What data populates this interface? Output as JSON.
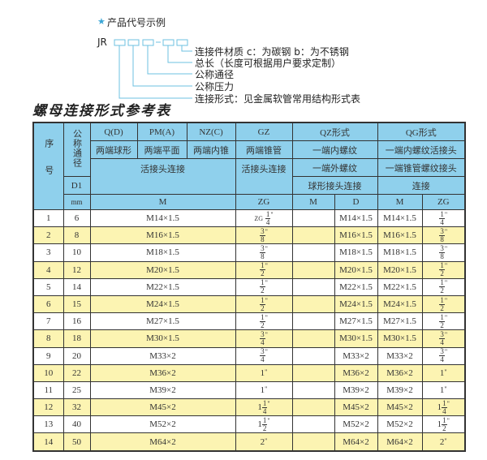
{
  "example": {
    "heading": "产品代号示例",
    "star_icon": "star-icon",
    "code_prefix": "JR",
    "dash": "-",
    "labels": [
      "连接件材质   c：为碳钢   b：为不锈钢",
      "总长（长度可根据用户要求定制）",
      "公称通径",
      "公称压力",
      "连接形式：见金属软管常用结构形式表"
    ],
    "accent_color": "#5ab8dc"
  },
  "table_title": "螺母连接形式参考表",
  "colors": {
    "header_bg": "#8fd0ec",
    "stripe_bg": "#fcf4b2"
  },
  "header": {
    "seq": "序号",
    "dn": "公称通径",
    "qd": "Q(D)",
    "pm": "PM(A)",
    "nz": "NZ(C)",
    "gz": "GZ",
    "qz": "QZ形式",
    "qg": "QG形式",
    "qd_desc": "两端球形",
    "pm_desc": "两端平面",
    "nz_desc": "两端内锥",
    "gz_desc": "两端锥管",
    "qz_desc1": "一端内螺纹",
    "qg_desc1": "一端内螺纹活接头",
    "union_conn": "活接头连接",
    "gz_conn": "活接头连接",
    "qz_desc2": "一端外螺纹",
    "qg_desc2": "一端锥管螺纹接头",
    "d1": "D1",
    "qz_desc3": "球形接头连接",
    "qg_desc3": "连接",
    "mm": "mm",
    "m": "M",
    "zg": "ZG",
    "qz_m": "M",
    "qz_d": "D",
    "qg_m": "M",
    "qg_zg": "ZG"
  },
  "rows": [
    {
      "no": "1",
      "dn": "6",
      "m": "M14×1.5",
      "gz": {
        "pre": "ZG",
        "w": "",
        "n": "1",
        "d": "4"
      },
      "qz_m": "",
      "qz_d": "M14×1.5",
      "qg_m": "M14×1.5",
      "qg_zg": {
        "w": "",
        "n": "1",
        "d": "4"
      }
    },
    {
      "no": "2",
      "dn": "8",
      "m": "M16×1.5",
      "gz": {
        "pre": "",
        "w": "",
        "n": "3",
        "d": "8"
      },
      "qz_m": "",
      "qz_d": "M16×1.5",
      "qg_m": "M16×1.5",
      "qg_zg": {
        "w": "",
        "n": "3",
        "d": "8"
      }
    },
    {
      "no": "3",
      "dn": "10",
      "m": "M18×1.5",
      "gz": {
        "pre": "",
        "w": "",
        "n": "3",
        "d": "8"
      },
      "qz_m": "",
      "qz_d": "M18×1.5",
      "qg_m": "M18×1.5",
      "qg_zg": {
        "w": "",
        "n": "3",
        "d": "8"
      }
    },
    {
      "no": "4",
      "dn": "12",
      "m": "M20×1.5",
      "gz": {
        "pre": "",
        "w": "",
        "n": "1",
        "d": "2"
      },
      "qz_m": "",
      "qz_d": "M20×1.5",
      "qg_m": "M20×1.5",
      "qg_zg": {
        "w": "",
        "n": "1",
        "d": "2"
      }
    },
    {
      "no": "5",
      "dn": "14",
      "m": "M22×1.5",
      "gz": {
        "pre": "",
        "w": "",
        "n": "1",
        "d": "2"
      },
      "qz_m": "",
      "qz_d": "M22×1.5",
      "qg_m": "M22×1.5",
      "qg_zg": {
        "w": "",
        "n": "1",
        "d": "2"
      }
    },
    {
      "no": "6",
      "dn": "15",
      "m": "M24×1.5",
      "gz": {
        "pre": "",
        "w": "",
        "n": "1",
        "d": "2"
      },
      "qz_m": "",
      "qz_d": "M24×1.5",
      "qg_m": "M24×1.5",
      "qg_zg": {
        "w": "",
        "n": "1",
        "d": "2"
      }
    },
    {
      "no": "7",
      "dn": "16",
      "m": "M27×1.5",
      "gz": {
        "pre": "",
        "w": "",
        "n": "1",
        "d": "2"
      },
      "qz_m": "",
      "qz_d": "M27×1.5",
      "qg_m": "M27×1.5",
      "qg_zg": {
        "w": "",
        "n": "1",
        "d": "2"
      }
    },
    {
      "no": "8",
      "dn": "18",
      "m": "M30×1.5",
      "gz": {
        "pre": "",
        "w": "",
        "n": "3",
        "d": "4"
      },
      "qz_m": "",
      "qz_d": "M30×1.5",
      "qg_m": "M30×1.5",
      "qg_zg": {
        "w": "",
        "n": "3",
        "d": "4"
      }
    },
    {
      "no": "9",
      "dn": "20",
      "m": "M33×2",
      "gz": {
        "pre": "",
        "w": "",
        "n": "3",
        "d": "4"
      },
      "qz_m": "",
      "qz_d": "M33×2",
      "qg_m": "M33×2",
      "qg_zg": {
        "w": "",
        "n": "3",
        "d": "4"
      }
    },
    {
      "no": "10",
      "dn": "22",
      "m": "M36×2",
      "gz": {
        "pre": "",
        "w": "1",
        "n": "",
        "d": ""
      },
      "qz_m": "",
      "qz_d": "M36×2",
      "qg_m": "M36×2",
      "qg_zg": {
        "w": "1",
        "n": "",
        "d": ""
      }
    },
    {
      "no": "11",
      "dn": "25",
      "m": "M39×2",
      "gz": {
        "pre": "",
        "w": "1",
        "n": "",
        "d": ""
      },
      "qz_m": "",
      "qz_d": "M39×2",
      "qg_m": "M39×2",
      "qg_zg": {
        "w": "1",
        "n": "",
        "d": ""
      }
    },
    {
      "no": "12",
      "dn": "32",
      "m": "M45×2",
      "gz": {
        "pre": "",
        "w": "1",
        "n": "1",
        "d": "4"
      },
      "qz_m": "",
      "qz_d": "M45×2",
      "qg_m": "M45×2",
      "qg_zg": {
        "w": "1",
        "n": "1",
        "d": "4"
      }
    },
    {
      "no": "13",
      "dn": "40",
      "m": "M52×2",
      "gz": {
        "pre": "",
        "w": "1",
        "n": "1",
        "d": "2"
      },
      "qz_m": "",
      "qz_d": "M52×2",
      "qg_m": "M52×2",
      "qg_zg": {
        "w": "1",
        "n": "1",
        "d": "2"
      }
    },
    {
      "no": "14",
      "dn": "50",
      "m": "M64×2",
      "gz": {
        "pre": "",
        "w": "2",
        "n": "",
        "d": ""
      },
      "qz_m": "",
      "qz_d": "M64×2",
      "qg_m": "M64×2",
      "qg_zg": {
        "w": "2",
        "n": "",
        "d": ""
      }
    }
  ],
  "inch_mark": "\""
}
